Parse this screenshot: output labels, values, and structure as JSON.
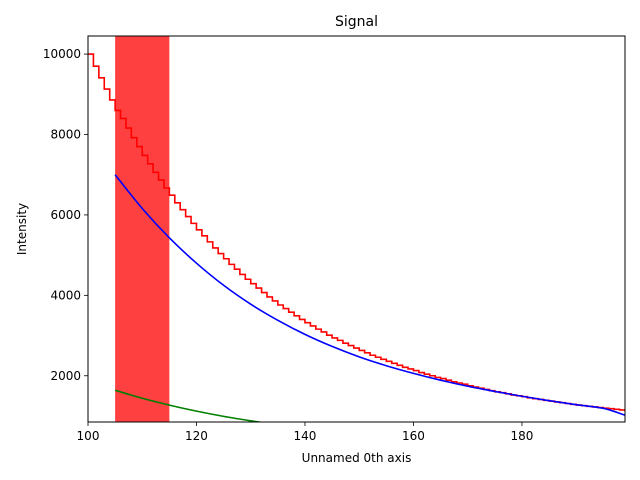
{
  "chart_data": {
    "type": "line",
    "title": "Signal",
    "xlabel": "Unnamed 0th axis",
    "ylabel": "Intensity",
    "xlim": [
      100,
      199
    ],
    "ylim": [
      850,
      10450
    ],
    "xticks": [
      100,
      120,
      140,
      160,
      180
    ],
    "yticks": [
      2000,
      4000,
      6000,
      8000,
      10000
    ],
    "grid": false,
    "legend": "none",
    "highlight_span": {
      "x": [
        105,
        115
      ],
      "color": "#ff0000",
      "alpha": 0.75
    },
    "series": [
      {
        "style": "step",
        "color": "#ff0000",
        "x_start": 100,
        "x_step": 1,
        "values": [
          10000,
          9700,
          9410,
          9130,
          8860,
          8600,
          8400,
          8160,
          7920,
          7700,
          7480,
          7270,
          7060,
          6870,
          6670,
          6490,
          6300,
          6130,
          5960,
          5790,
          5630,
          5480,
          5330,
          5180,
          5040,
          4910,
          4770,
          4650,
          4520,
          4400,
          4290,
          4180,
          4070,
          3960,
          3860,
          3760,
          3670,
          3580,
          3490,
          3400,
          3320,
          3240,
          3160,
          3090,
          3010,
          2940,
          2880,
          2810,
          2750,
          2690,
          2630,
          2570,
          2510,
          2460,
          2410,
          2360,
          2310,
          2260,
          2210,
          2170,
          2130,
          2080,
          2040,
          2000,
          1960,
          1930,
          1890,
          1850,
          1820,
          1790,
          1750,
          1720,
          1690,
          1660,
          1630,
          1600,
          1580,
          1550,
          1520,
          1500,
          1480,
          1450,
          1430,
          1410,
          1390,
          1370,
          1350,
          1330,
          1310,
          1290,
          1270,
          1255,
          1240,
          1225,
          1210,
          1195,
          1180,
          1165,
          1150,
          1140
        ]
      },
      {
        "style": "line",
        "color": "#0000ff",
        "x": [
          105,
          110,
          115,
          120,
          125,
          130,
          135,
          140,
          145,
          150,
          155,
          160,
          165,
          170,
          175,
          180,
          185,
          190,
          195,
          199
        ],
        "values": [
          7000,
          6160,
          5430,
          4800,
          4250,
          3780,
          3380,
          3030,
          2730,
          2470,
          2250,
          2060,
          1890,
          1740,
          1610,
          1490,
          1380,
          1280,
          1190,
          1020
        ]
      },
      {
        "style": "line",
        "color": "#008000",
        "x": [
          105,
          110,
          115,
          120,
          125,
          130,
          135
        ],
        "values": [
          1640,
          1440,
          1270,
          1120,
          990,
          880,
          780
        ]
      }
    ]
  }
}
